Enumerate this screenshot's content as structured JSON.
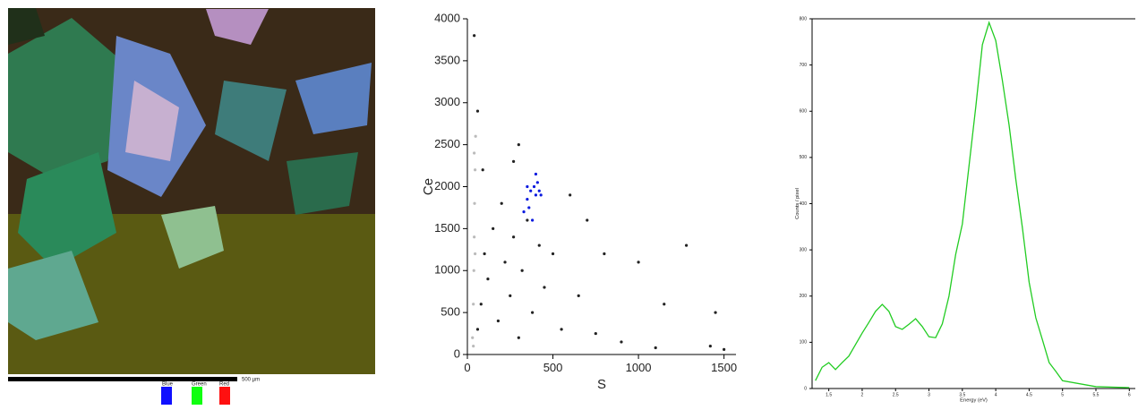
{
  "map_image": {
    "scale_bar": "500 µm",
    "legend": [
      "Blue",
      "Green",
      "Red"
    ]
  },
  "chart_data": [
    {
      "type": "scatter",
      "x_label": "S",
      "y_label": "Ce",
      "xlim": [
        0,
        1570
      ],
      "ylim": [
        0,
        4000
      ],
      "xticks": [
        0,
        500,
        1000,
        1500
      ],
      "yticks": [
        0,
        500,
        1000,
        1500,
        2000,
        2500,
        3000,
        3500,
        4000
      ],
      "series": [
        {
          "color": "#222222",
          "x": [
            60,
            80,
            100,
            120,
            150,
            180,
            200,
            220,
            250,
            270,
            300,
            320,
            350,
            380,
            420,
            450,
            500,
            550,
            600,
            650,
            700,
            750,
            800,
            900,
            1000,
            1100,
            1150,
            1280,
            1420,
            1450,
            1500,
            40,
            60,
            90,
            270,
            300
          ],
          "values": [
            300,
            600,
            1200,
            900,
            1500,
            400,
            1800,
            1100,
            700,
            1400,
            200,
            1000,
            1600,
            500,
            1300,
            800,
            1200,
            300,
            1900,
            700,
            1600,
            250,
            1200,
            150,
            1100,
            80,
            600,
            1300,
            100,
            500,
            60,
            3800,
            2900,
            2200,
            2300,
            2500
          ]
        },
        {
          "color": "#bbbbbb",
          "x": [
            30,
            35,
            38,
            40,
            42,
            45,
            48,
            35,
            40,
            45
          ],
          "values": [
            200,
            600,
            1000,
            1400,
            1800,
            2200,
            2600,
            100,
            2400,
            1200
          ]
        },
        {
          "color": "#0a1adf",
          "x": [
            330,
            350,
            370,
            390,
            400,
            410,
            420,
            360,
            380,
            400,
            430,
            350
          ],
          "values": [
            1700,
            1850,
            1950,
            2000,
            1900,
            2050,
            1950,
            1750,
            1600,
            2150,
            1900,
            2000
          ]
        }
      ]
    },
    {
      "type": "line",
      "x_label": "Energy (eV)",
      "y_label": "Counts / pixel",
      "xlim": [
        1.25,
        6.09
      ],
      "ylim": [
        0,
        800
      ],
      "xticks": [
        1.5,
        2.0,
        2.5,
        3.0,
        3.5,
        4.0,
        4.5,
        5.0,
        5.5,
        6.0
      ],
      "yticks": [
        0,
        100,
        200,
        300,
        400,
        500,
        600,
        700,
        800
      ],
      "series": [
        {
          "color": "#22cc22",
          "x": [
            1.3,
            1.4,
            1.5,
            1.6,
            1.7,
            1.8,
            1.9,
            2.0,
            2.1,
            2.2,
            2.3,
            2.4,
            2.5,
            2.6,
            2.7,
            2.8,
            2.9,
            3.0,
            3.1,
            3.2,
            3.3,
            3.4,
            3.5,
            3.6,
            3.7,
            3.8,
            3.9,
            4.0,
            4.1,
            4.2,
            4.3,
            4.4,
            4.5,
            4.6,
            4.7,
            4.8,
            4.9,
            5.0,
            5.5,
            6.0
          ],
          "values": [
            17,
            46,
            56,
            41,
            56,
            70,
            95,
            120,
            143,
            167,
            182,
            167,
            134,
            128,
            139,
            151,
            134,
            112,
            110,
            140,
            200,
            290,
            356,
            482,
            608,
            744,
            792,
            753,
            666,
            570,
            453,
            347,
            230,
            153,
            105,
            56,
            37,
            17,
            4,
            2
          ]
        }
      ]
    }
  ]
}
